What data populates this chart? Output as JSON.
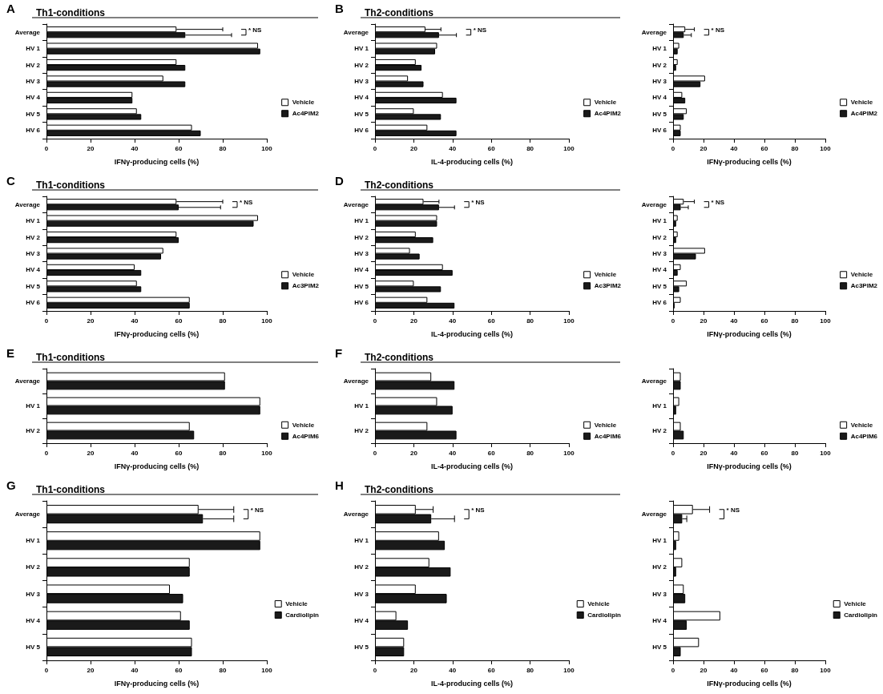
{
  "chart_data": [
    {
      "type": "bar",
      "orientation": "horizontal",
      "title": "Th1-conditions",
      "xlabel": "IFNγ-producing cells (%)",
      "categories": [
        "Average",
        "HV 1",
        "HV 2",
        "HV 3",
        "HV 4",
        "HV 5",
        "HV 6"
      ],
      "series": [
        {
          "name": "Vehicle",
          "color": "#ffffff",
          "values": [
            59,
            96,
            59,
            53,
            39,
            41,
            66
          ],
          "errors": [
            [
              59,
              80
            ],
            null,
            null,
            null,
            null,
            null,
            null
          ]
        },
        {
          "name": "Ac4PIM2",
          "color": "#1a1a1a",
          "values": [
            63,
            97,
            63,
            63,
            39,
            43,
            70
          ],
          "errors": [
            [
              63,
              84
            ],
            null,
            null,
            null,
            null,
            null,
            null
          ]
        }
      ],
      "xlim": [
        0,
        100
      ],
      "xticks": [
        0,
        20,
        40,
        60,
        80,
        100
      ],
      "legend": "right",
      "annotations": [
        "A",
        "* NS"
      ]
    },
    {
      "type": "bar",
      "orientation": "horizontal",
      "title": "Th2-conditions",
      "xlabel": "IL-4-producing cells (%)",
      "categories": [
        "Average",
        "HV 1",
        "HV 2",
        "HV 3",
        "HV 4",
        "HV 5",
        "HV 6"
      ],
      "series": [
        {
          "name": "Vehicle",
          "color": "#ffffff",
          "values": [
            26,
            32,
            21,
            17,
            35,
            20,
            27
          ],
          "errors": [
            [
              26,
              34
            ],
            null,
            null,
            null,
            null,
            null,
            null
          ]
        },
        {
          "name": "Ac4PIM2",
          "color": "#1a1a1a",
          "values": [
            33,
            31,
            24,
            25,
            42,
            34,
            42
          ],
          "errors": [
            [
              33,
              42
            ],
            null,
            null,
            null,
            null,
            null,
            null
          ]
        }
      ],
      "xlim": [
        0,
        100
      ],
      "xticks": [
        0,
        20,
        40,
        60,
        80,
        100
      ],
      "legend": "right",
      "annotations": [
        "B",
        "* NS"
      ]
    },
    {
      "type": "bar",
      "orientation": "horizontal",
      "xlabel": "IFNγ-producing cells (%)",
      "categories": [
        "Average",
        "HV 1",
        "HV 2",
        "HV 3",
        "HV 4",
        "HV 5",
        "HV 6"
      ],
      "series": [
        {
          "name": "Vehicle",
          "color": "#ffffff",
          "values": [
            8,
            4,
            3,
            21,
            6,
            9,
            5
          ],
          "errors": [
            [
              8,
              14
            ],
            null,
            null,
            null,
            null,
            null,
            null
          ]
        },
        {
          "name": "Ac4PIM2",
          "color": "#1a1a1a",
          "values": [
            7,
            3,
            2,
            18,
            8,
            7,
            5
          ],
          "errors": [
            [
              7,
              12
            ],
            null,
            null,
            null,
            null,
            null,
            null
          ]
        }
      ],
      "xlim": [
        0,
        100
      ],
      "xticks": [
        0,
        20,
        40,
        60,
        80,
        100
      ],
      "legend": "right",
      "annotations": [
        "* NS"
      ]
    },
    {
      "type": "bar",
      "orientation": "horizontal",
      "title": "Th1-conditions",
      "xlabel": "IFNγ-producing cells (%)",
      "categories": [
        "Average",
        "HV 1",
        "HV 2",
        "HV 3",
        "HV 4",
        "HV 5",
        "HV 6"
      ],
      "series": [
        {
          "name": "Vehicle",
          "color": "#ffffff",
          "values": [
            59,
            96,
            59,
            53,
            40,
            41,
            65
          ],
          "errors": [
            [
              59,
              80
            ],
            null,
            null,
            null,
            null,
            null,
            null
          ]
        },
        {
          "name": "Ac3PIM2",
          "color": "#1a1a1a",
          "values": [
            60,
            94,
            60,
            52,
            43,
            43,
            65
          ],
          "errors": [
            [
              60,
              79
            ],
            null,
            null,
            null,
            null,
            null,
            null
          ]
        }
      ],
      "xlim": [
        0,
        100
      ],
      "xticks": [
        0,
        20,
        40,
        60,
        80,
        100
      ],
      "legend": "right",
      "annotations": [
        "C",
        "* NS"
      ]
    },
    {
      "type": "bar",
      "orientation": "horizontal",
      "title": "Th2-conditions",
      "xlabel": "IL-4-producing cells (%)",
      "categories": [
        "Average",
        "HV 1",
        "HV 2",
        "HV 3",
        "HV 4",
        "HV 5",
        "HV 6"
      ],
      "series": [
        {
          "name": "Vehicle",
          "color": "#ffffff",
          "values": [
            25,
            32,
            21,
            18,
            35,
            20,
            27
          ],
          "errors": [
            [
              25,
              33
            ],
            null,
            null,
            null,
            null,
            null,
            null
          ]
        },
        {
          "name": "Ac3PIM2",
          "color": "#1a1a1a",
          "values": [
            33,
            32,
            30,
            23,
            40,
            34,
            41
          ],
          "errors": [
            [
              33,
              41
            ],
            null,
            null,
            null,
            null,
            null,
            null
          ]
        }
      ],
      "xlim": [
        0,
        100
      ],
      "xticks": [
        0,
        20,
        40,
        60,
        80,
        100
      ],
      "legend": "right",
      "annotations": [
        "D",
        "* NS"
      ]
    },
    {
      "type": "bar",
      "orientation": "horizontal",
      "xlabel": "IFNγ-producing cells (%)",
      "categories": [
        "Average",
        "HV 1",
        "HV 2",
        "HV 3",
        "HV 4",
        "HV 5",
        "HV 6"
      ],
      "series": [
        {
          "name": "Vehicle",
          "color": "#ffffff",
          "values": [
            7,
            3,
            3,
            21,
            5,
            9,
            5
          ],
          "errors": [
            [
              7,
              14
            ],
            null,
            null,
            null,
            null,
            null,
            null
          ]
        },
        {
          "name": "Ac3PIM2",
          "color": "#1a1a1a",
          "values": [
            5,
            2,
            2,
            15,
            3,
            4,
            1
          ],
          "errors": [
            [
              5,
              10
            ],
            null,
            null,
            null,
            null,
            null,
            null
          ]
        }
      ],
      "xlim": [
        0,
        100
      ],
      "xticks": [
        0,
        20,
        40,
        60,
        80,
        100
      ],
      "legend": "right",
      "annotations": [
        "* NS"
      ]
    },
    {
      "type": "bar",
      "orientation": "horizontal",
      "title": "Th1-conditions",
      "xlabel": "IFNγ-producing cells (%)",
      "categories": [
        "Average",
        "HV 1",
        "HV 2"
      ],
      "series": [
        {
          "name": "Vehicle",
          "color": "#ffffff",
          "values": [
            81,
            97,
            65
          ]
        },
        {
          "name": "Ac4PIM6",
          "color": "#1a1a1a",
          "values": [
            81,
            97,
            67
          ]
        }
      ],
      "xlim": [
        0,
        100
      ],
      "xticks": [
        0,
        20,
        40,
        60,
        80,
        100
      ],
      "legend": "right",
      "annotations": [
        "E"
      ]
    },
    {
      "type": "bar",
      "orientation": "horizontal",
      "title": "Th2-conditions",
      "xlabel": "IL-4-producing cells (%)",
      "categories": [
        "Average",
        "HV 1",
        "HV 2"
      ],
      "series": [
        {
          "name": "Vehicle",
          "color": "#ffffff",
          "values": [
            29,
            32,
            27
          ]
        },
        {
          "name": "Ac4PIM6",
          "color": "#1a1a1a",
          "values": [
            41,
            40,
            42
          ]
        }
      ],
      "xlim": [
        0,
        100
      ],
      "xticks": [
        0,
        20,
        40,
        60,
        80,
        100
      ],
      "legend": "right",
      "annotations": [
        "F"
      ]
    },
    {
      "type": "bar",
      "orientation": "horizontal",
      "xlabel": "IFNγ-producing cells (%)",
      "categories": [
        "Average",
        "HV 1",
        "HV 2"
      ],
      "series": [
        {
          "name": "Vehicle",
          "color": "#ffffff",
          "values": [
            5,
            4,
            5
          ]
        },
        {
          "name": "Ac4PIM6",
          "color": "#1a1a1a",
          "values": [
            5,
            2,
            7
          ]
        }
      ],
      "xlim": [
        0,
        100
      ],
      "xticks": [
        0,
        20,
        40,
        60,
        80,
        100
      ],
      "legend": "right"
    },
    {
      "type": "bar",
      "orientation": "horizontal",
      "title": "Th1-conditions",
      "xlabel": "IFNγ-producing cells (%)",
      "categories": [
        "Average",
        "HV 1",
        "HV 2",
        "HV 3",
        "HV 4",
        "HV 5"
      ],
      "series": [
        {
          "name": "Vehicle",
          "color": "#ffffff",
          "values": [
            69,
            97,
            65,
            56,
            61,
            66
          ],
          "errors": [
            [
              69,
              85
            ],
            null,
            null,
            null,
            null,
            null
          ]
        },
        {
          "name": "Cardiolipin",
          "color": "#1a1a1a",
          "values": [
            71,
            97,
            65,
            62,
            65,
            66
          ],
          "errors": [
            [
              71,
              85
            ],
            null,
            null,
            null,
            null,
            null
          ]
        }
      ],
      "xlim": [
        0,
        100
      ],
      "xticks": [
        0,
        20,
        40,
        60,
        80,
        100
      ],
      "legend": "right",
      "annotations": [
        "G",
        "* NS"
      ]
    },
    {
      "type": "bar",
      "orientation": "horizontal",
      "title": "Th2-conditions",
      "xlabel": "IL-4-producing cells (%)",
      "categories": [
        "Average",
        "HV 1",
        "HV 2",
        "HV 3",
        "HV 4",
        "HV 5"
      ],
      "series": [
        {
          "name": "Vehicle",
          "color": "#ffffff",
          "values": [
            21,
            33,
            28,
            21,
            11,
            15
          ],
          "errors": [
            [
              21,
              30
            ],
            null,
            null,
            null,
            null,
            null
          ]
        },
        {
          "name": "Cardiolipin",
          "color": "#1a1a1a",
          "values": [
            29,
            36,
            39,
            37,
            17,
            15
          ],
          "errors": [
            [
              29,
              41
            ],
            null,
            null,
            null,
            null,
            null
          ]
        }
      ],
      "xlim": [
        0,
        100
      ],
      "xticks": [
        0,
        20,
        40,
        60,
        80,
        100
      ],
      "legend": "right",
      "annotations": [
        "H",
        "* NS"
      ]
    },
    {
      "type": "bar",
      "orientation": "horizontal",
      "xlabel": "IFNγ-producing cells (%)",
      "categories": [
        "Average",
        "HV 1",
        "HV 2",
        "HV 3",
        "HV 4",
        "HV 5"
      ],
      "series": [
        {
          "name": "Vehicle",
          "color": "#ffffff",
          "values": [
            13,
            4,
            6,
            7,
            31,
            17
          ],
          "errors": [
            [
              13,
              24
            ],
            null,
            null,
            null,
            null,
            null
          ]
        },
        {
          "name": "Cardiolipin",
          "color": "#1a1a1a",
          "values": [
            6,
            2,
            2,
            8,
            9,
            5
          ],
          "errors": [
            [
              6,
              9
            ],
            null,
            null,
            null,
            null,
            null
          ]
        }
      ],
      "xlim": [
        0,
        100
      ],
      "xticks": [
        0,
        20,
        40,
        60,
        80,
        100
      ],
      "legend": "right",
      "annotations": [
        "* NS"
      ]
    }
  ]
}
